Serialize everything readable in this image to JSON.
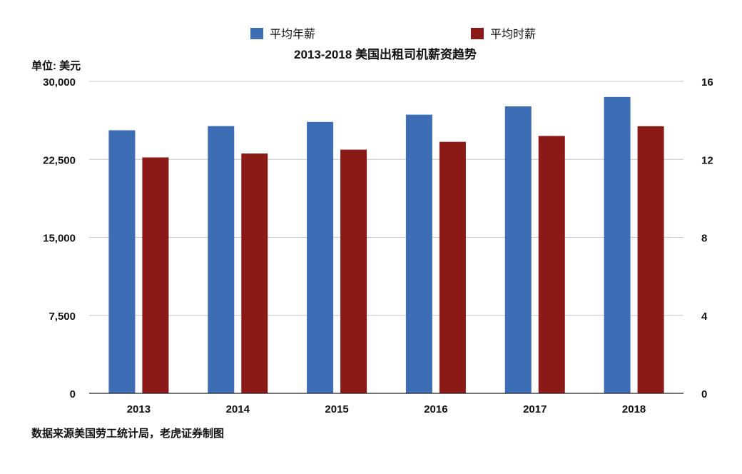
{
  "chart_data": {
    "type": "bar",
    "title": "2013-2018 美国出租司机薪资趋势",
    "unit_label": "单位: 美元",
    "source_note": "数据来源美国劳工统计局，老虎证券制图",
    "categories": [
      "2013",
      "2014",
      "2015",
      "2016",
      "2017",
      "2018"
    ],
    "series": [
      {
        "name": "平均年薪",
        "axis": "left",
        "color": "#3d6db5",
        "values": [
          25300,
          25700,
          26100,
          26800,
          27600,
          28500
        ]
      },
      {
        "name": "平均时薪",
        "axis": "right",
        "color": "#8b1a17",
        "values": [
          12.1,
          12.3,
          12.5,
          12.9,
          13.2,
          13.7
        ]
      }
    ],
    "y_left": {
      "range": [
        0,
        30000
      ],
      "ticks": [
        "0",
        "7,500",
        "15,000",
        "22,500",
        "30,000"
      ],
      "tick_values": [
        0,
        7500,
        15000,
        22500,
        30000
      ]
    },
    "y_right": {
      "range": [
        0,
        16
      ],
      "ticks": [
        "0",
        "4",
        "8",
        "12",
        "16"
      ],
      "tick_values": [
        0,
        4,
        8,
        12,
        16
      ]
    },
    "grid": true,
    "legend_position": "top"
  }
}
